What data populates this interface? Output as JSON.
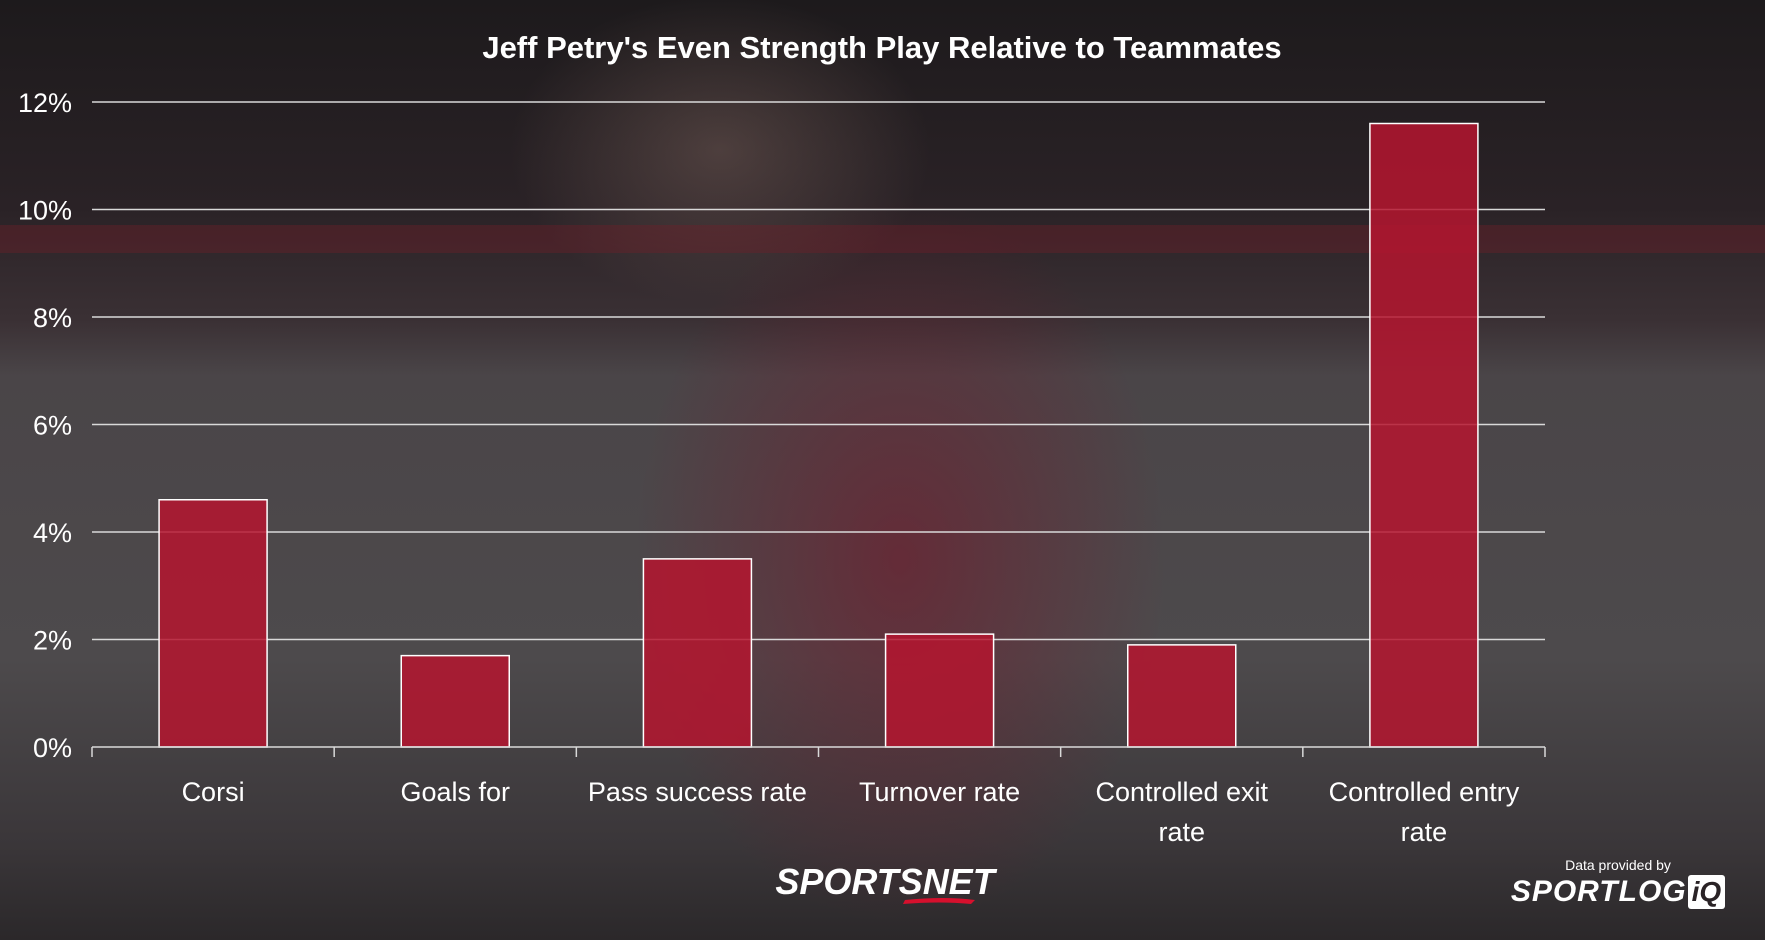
{
  "chart_data": {
    "type": "bar",
    "title": "Jeff Petry's Even Strength Play Relative to Teammates",
    "categories": [
      "Corsi",
      "Goals for",
      "Pass success rate",
      "Turnover rate",
      "Controlled exit rate",
      "Controlled entry rate"
    ],
    "values": [
      4.6,
      1.7,
      3.5,
      2.1,
      1.9,
      11.6
    ],
    "ylim": [
      0,
      12
    ],
    "yticks": [
      0,
      2,
      4,
      6,
      8,
      10,
      12
    ],
    "ytick_labels": [
      "0%",
      "2%",
      "4%",
      "6%",
      "8%",
      "10%",
      "12%"
    ],
    "grid": true,
    "bar_color": "#b5152f",
    "legend": "none"
  },
  "branding": {
    "sportsnet": "SPORTSNET",
    "provided_label": "Data provided by",
    "sportlogiq": "SPORTLOG",
    "sportlogiq_iq": "iQ"
  },
  "colors": {
    "accent": "#b5152f",
    "text": "#ffffff"
  }
}
